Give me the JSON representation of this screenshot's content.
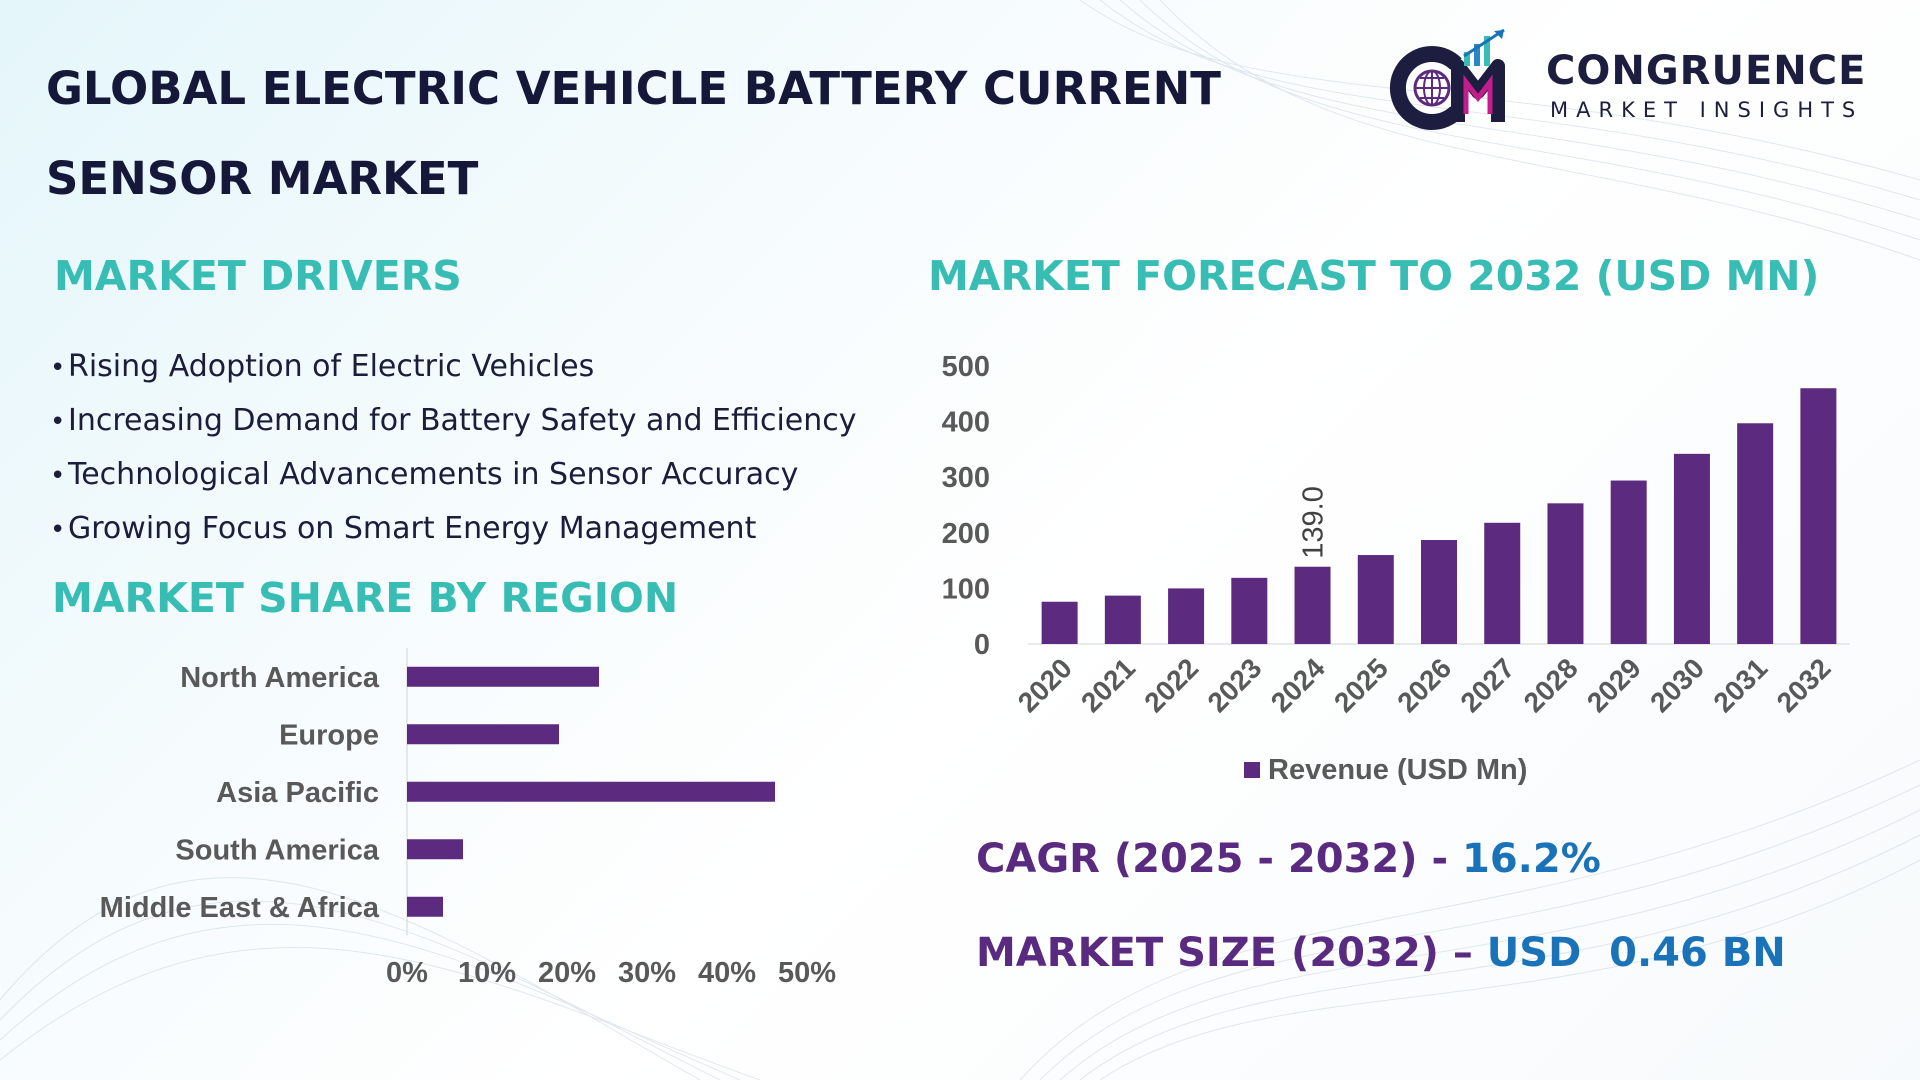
{
  "title": {
    "line1": "GLOBAL ELECTRIC VEHICLE BATTERY CURRENT",
    "line2": "SENSOR MARKET"
  },
  "logo": {
    "name": "CONGRUENCE",
    "subtitle": "MARKET INSIGHTS"
  },
  "drivers": {
    "heading": "MARKET DRIVERS",
    "bullet": "•",
    "items": [
      "Rising Adoption of Electric Vehicles",
      "Increasing Demand for Battery Safety and Efficiency",
      "Technological Advancements in Sensor Accuracy",
      "Growing Focus on Smart Energy Management"
    ]
  },
  "region": {
    "heading": "MARKET SHARE BY REGION"
  },
  "forecast": {
    "heading": "MARKET FORECAST TO 2032 (USD MN)"
  },
  "stats": {
    "cagr_label": "CAGR (2025 - 2032) -",
    "cagr_value": "16.2%",
    "size_label": "MARKET SIZE (2032) –",
    "size_value": "USD  0.46 BN"
  },
  "colors": {
    "bar": "#5c2a7e",
    "accent": "#38bdb4",
    "title": "#16183a",
    "value": "#1a73b8"
  },
  "chart_data": [
    {
      "type": "bar",
      "orientation": "horizontal",
      "title": "MARKET SHARE BY REGION",
      "categories": [
        "North America",
        "Europe",
        "Asia Pacific",
        "South America",
        "Middle East & Africa"
      ],
      "values": [
        24,
        19,
        46,
        7,
        4.5
      ],
      "xlim": [
        0,
        50
      ],
      "xticks": [
        "0%",
        "10%",
        "20%",
        "30%",
        "40%",
        "50%"
      ],
      "grid": false
    },
    {
      "type": "bar",
      "title": "MARKET FORECAST TO 2032 (USD MN)",
      "categories": [
        "2020",
        "2021",
        "2022",
        "2023",
        "2024",
        "2025",
        "2026",
        "2027",
        "2028",
        "2029",
        "2030",
        "2031",
        "2032"
      ],
      "series": [
        {
          "name": "Revenue (USD Mn)",
          "values": [
            76,
            87,
            100,
            119,
            139.0,
            160,
            187,
            218,
            253,
            294,
            342,
            397,
            460
          ]
        }
      ],
      "data_labels": [
        {
          "category": "2024",
          "text": "139.0"
        }
      ],
      "yticks": [
        "0",
        "100",
        "200",
        "300",
        "400",
        "500"
      ],
      "ylim": [
        0,
        500
      ],
      "legend": "bottom-center",
      "grid": false
    }
  ]
}
